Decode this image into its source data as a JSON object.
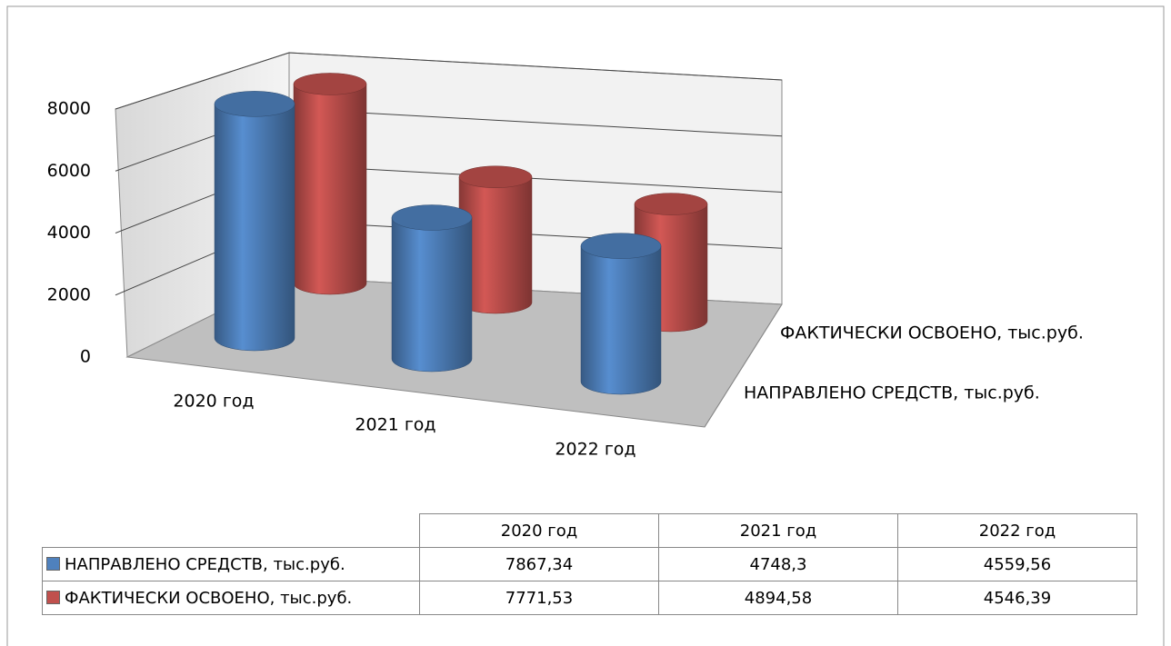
{
  "chart_data": {
    "type": "bar",
    "categories": [
      "2020 год",
      "2021 год",
      "2022 год"
    ],
    "series": [
      {
        "name": "НАПРАВЛЕНО СРЕДСТВ, тыс.руб.",
        "color": "#4f81bd",
        "values": [
          7867.34,
          4748.3,
          4559.56
        ],
        "value_labels": [
          "7867,34",
          "4748,3",
          "4559,56"
        ]
      },
      {
        "name": "ФАКТИЧЕСКИ ОСВОЕНО, тыс.руб.",
        "color": "#c0504d",
        "values": [
          7771.53,
          4894.58,
          4546.39
        ],
        "value_labels": [
          "7771,53",
          "4894,58",
          "4546,39"
        ]
      }
    ],
    "ylim": [
      0,
      8000
    ],
    "yticks": [
      0,
      2000,
      4000,
      6000,
      8000
    ],
    "grid": true
  }
}
